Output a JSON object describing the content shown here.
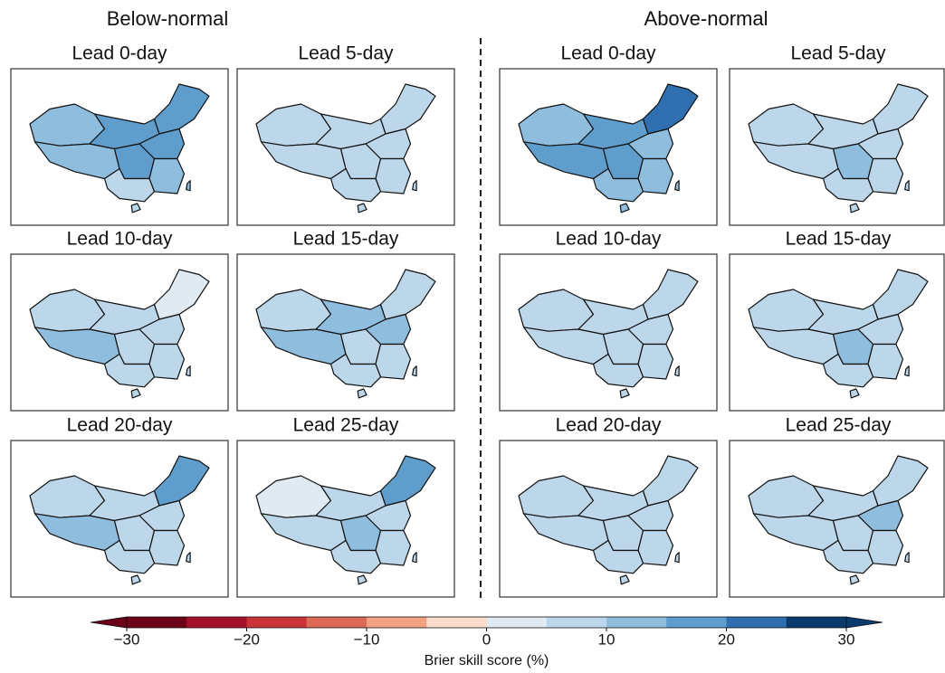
{
  "groups": [
    {
      "title": "Below-normal",
      "panels": [
        {
          "title": "Lead 0-day",
          "values": [
            12,
            10,
            15,
            18,
            15,
            17,
            12,
            8
          ]
        },
        {
          "title": "Lead 5-day",
          "values": [
            8,
            7,
            8,
            8,
            8,
            9,
            7,
            6
          ]
        },
        {
          "title": "Lead 10-day",
          "values": [
            8,
            13,
            8,
            3,
            8,
            9,
            8,
            7
          ]
        },
        {
          "title": "Lead 15-day",
          "values": [
            9,
            13,
            12,
            8,
            14,
            8,
            7,
            6
          ]
        },
        {
          "title": "Lead 20-day",
          "values": [
            8,
            13,
            8,
            15,
            8,
            9,
            8,
            6
          ]
        },
        {
          "title": "Lead 25-day",
          "values": [
            4,
            7,
            9,
            17,
            8,
            12,
            8,
            7
          ]
        }
      ]
    },
    {
      "title": "Above-normal",
      "panels": [
        {
          "title": "Lead 0-day",
          "values": [
            14,
            18,
            17,
            22,
            12,
            17,
            10,
            14
          ]
        },
        {
          "title": "Lead 5-day",
          "values": [
            7,
            8,
            8,
            8,
            8,
            10,
            7,
            7
          ]
        },
        {
          "title": "Lead 10-day",
          "values": [
            8,
            8,
            8,
            8,
            8,
            9,
            7,
            7
          ]
        },
        {
          "title": "Lead 15-day",
          "values": [
            8,
            8,
            8,
            8,
            8,
            14,
            8,
            7
          ]
        },
        {
          "title": "Lead 20-day",
          "values": [
            8,
            9,
            8,
            8,
            8,
            9,
            8,
            8
          ]
        },
        {
          "title": "Lead 25-day",
          "values": [
            8,
            8,
            9,
            8,
            12,
            9,
            8,
            9
          ]
        }
      ]
    }
  ],
  "colorbar": {
    "label": "Brier skill score (%)",
    "boundaries": [
      -30,
      -25,
      -20,
      -15,
      -10,
      -5,
      0,
      5,
      10,
      15,
      20,
      25,
      30
    ],
    "colors": [
      "#6b0016",
      "#a5112b",
      "#c8343a",
      "#dc6a55",
      "#f0a283",
      "#fbdccb",
      "#dfeaf3",
      "#bdd7ea",
      "#8fbddd",
      "#5f9dcc",
      "#2f6fb0",
      "#0b3a6e"
    ],
    "ticks": [
      {
        "value": -30,
        "label": "−30"
      },
      {
        "value": -20,
        "label": "−20"
      },
      {
        "value": -10,
        "label": "−10"
      },
      0,
      10,
      20,
      30
    ]
  }
}
